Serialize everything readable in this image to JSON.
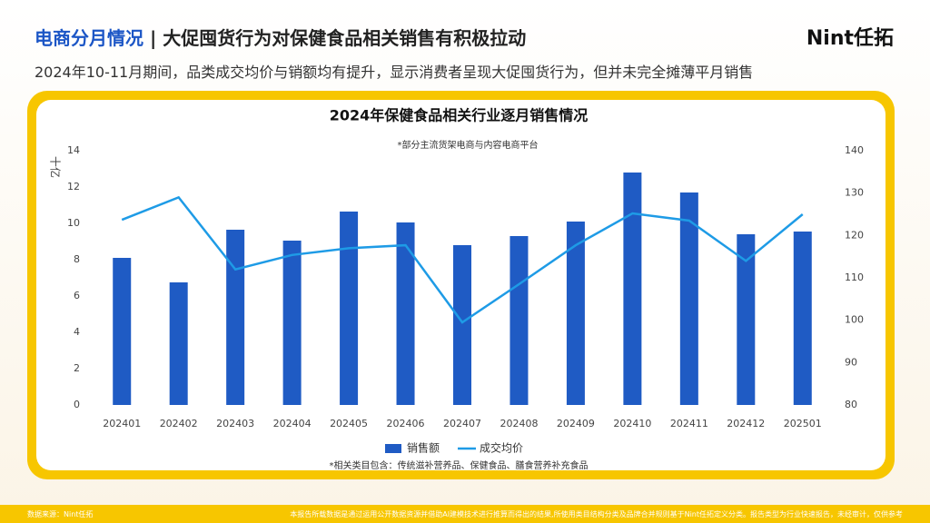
{
  "header": {
    "topic": "电商分月情况",
    "separator": "|",
    "title": "大促囤货行为对保健食品相关销售有积极拉动",
    "logo": "Nint任拓",
    "subtitle": "2024年10-11月期间，品类成交均价与销额均有提升，显示消费者呈现大促囤货行为，但并未完全摊薄平月销售"
  },
  "chart_data": {
    "type": "bar-line",
    "title": "2024年保健食品相关行业逐月销售情况",
    "note": "*部分主流货架电商与内容电商平台",
    "y_label": "十亿",
    "categories": [
      "202401",
      "202402",
      "202403",
      "202404",
      "202405",
      "202406",
      "202407",
      "202408",
      "202409",
      "202410",
      "202411",
      "202412",
      "202501"
    ],
    "series": [
      {
        "name": "销售额",
        "type": "bar",
        "color": "#1f5bc4",
        "values": [
          8.1,
          6.75,
          9.65,
          9.05,
          10.65,
          10.05,
          8.8,
          9.3,
          10.1,
          12.8,
          11.7,
          9.4,
          9.55
        ]
      },
      {
        "name": "成交均价",
        "type": "line",
        "axis": "y2",
        "color": "#1e9be6",
        "values": [
          123.7,
          129,
          112,
          115.4,
          117,
          117.7,
          99.5,
          108.5,
          117.7,
          125.2,
          123.5,
          114,
          125
        ]
      }
    ],
    "ylim": [
      0,
      14
    ],
    "yticks": [
      0,
      2,
      4,
      6,
      8,
      10,
      12,
      14
    ],
    "y2lim": [
      80,
      140
    ],
    "y2ticks": [
      80,
      90,
      100,
      110,
      120,
      130,
      140
    ],
    "legend": "bottom",
    "footnote": "*相关类目包含：传统滋补营养品、保健食品、膳食营养补充食品"
  },
  "footer": {
    "source": "数据来源：Nint任拓",
    "disclaimer": "本报告所载数据是通过运用公开数据资源并借助AI建模技术进行推算而得出的结果,所使用类目结构分类及品牌合并规则基于Nint任拓定义分类。报告类型为行业快速报告，未经审计，仅供参考"
  }
}
